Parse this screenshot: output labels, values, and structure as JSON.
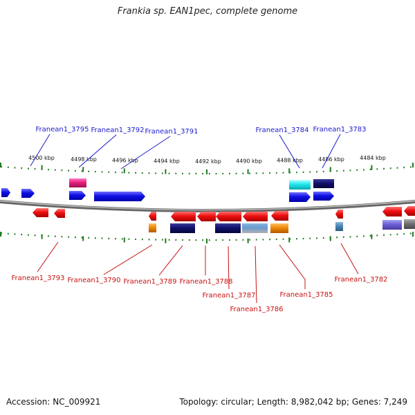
{
  "title": "Frankia sp. EAN1pec, complete genome",
  "accession": "Accession: NC_009921",
  "summary": "Topology: circular; Length: 8,982,042 bp; Genes: 7,249",
  "colors": {
    "forward_label": "#1a1ad0",
    "reverse_label": "#c81010",
    "backbone": "#888888",
    "tick": "#1f7a1f"
  },
  "scale_labels": [
    "4500 kbp",
    "4498 kbp",
    "4496 kbp",
    "4494 kbp",
    "4492 kbp",
    "4490 kbp",
    "4488 kbp",
    "4486 kbp",
    "4484 kbp"
  ],
  "forward_labels": [
    "Franean1_3795",
    "Franean1_3792",
    "Franean1_3791",
    "Franean1_3784",
    "Franean1_3783"
  ],
  "reverse_labels": [
    "Franean1_3793",
    "Franean1_3790",
    "Franean1_3789",
    "Franean1_3788",
    "Franean1_3787",
    "Franean1_3786",
    "Franean1_3785",
    "Franean1_3782"
  ]
}
